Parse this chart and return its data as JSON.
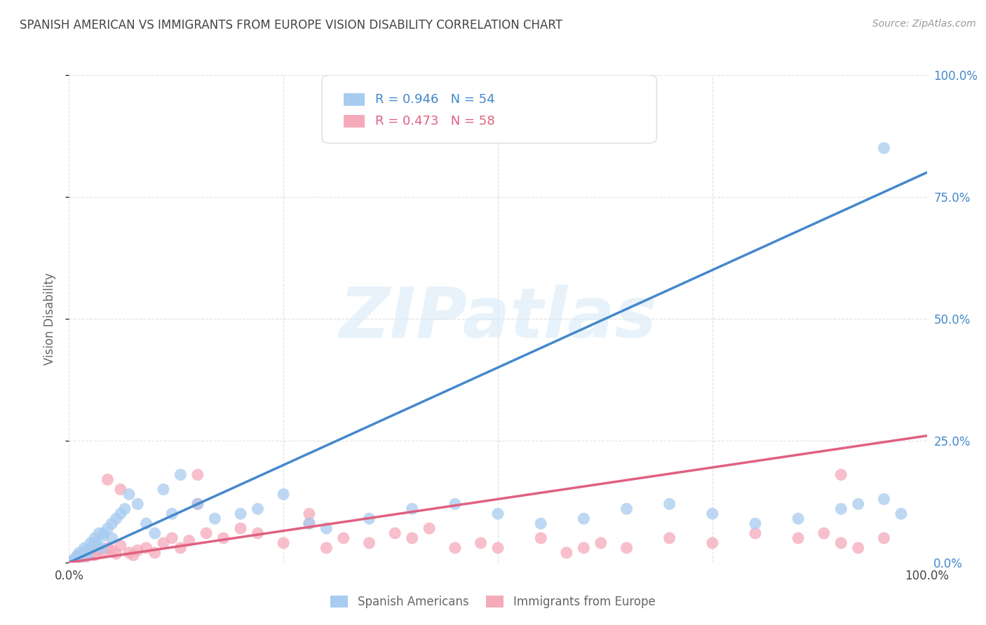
{
  "title": "SPANISH AMERICAN VS IMMIGRANTS FROM EUROPE VISION DISABILITY CORRELATION CHART",
  "source": "Source: ZipAtlas.com",
  "ylabel": "Vision Disability",
  "xlim": [
    0,
    100
  ],
  "ylim": [
    0,
    100
  ],
  "xticks": [
    0,
    25,
    50,
    75,
    100
  ],
  "yticks": [
    0,
    25,
    50,
    75,
    100
  ],
  "xtick_labels_bottom": [
    "0.0%",
    "",
    "",
    "",
    "100.0%"
  ],
  "ytick_labels_right": [
    "0.0%",
    "25.0%",
    "50.0%",
    "75.0%",
    "100.0%"
  ],
  "blue_R": 0.946,
  "blue_N": 54,
  "pink_R": 0.473,
  "pink_N": 58,
  "blue_scatter_color": "#A8CCF0",
  "pink_scatter_color": "#F5AABA",
  "blue_line_color": "#4488CC",
  "pink_line_color": "#E06080",
  "legend_label_blue": "Spanish Americans",
  "legend_label_pink": "Immigrants from Europe",
  "blue_scatter_x": [
    0.3,
    0.5,
    0.8,
    1.0,
    1.2,
    1.5,
    1.8,
    2.0,
    2.2,
    2.5,
    2.8,
    3.0,
    3.2,
    3.5,
    3.8,
    4.0,
    4.5,
    5.0,
    5.5,
    6.0,
    6.5,
    7.0,
    8.0,
    9.0,
    10.0,
    11.0,
    12.0,
    13.0,
    15.0,
    17.0,
    20.0,
    22.0,
    25.0,
    28.0,
    30.0,
    35.0,
    40.0,
    45.0,
    50.0,
    55.0,
    60.0,
    65.0,
    70.0,
    75.0,
    80.0,
    85.0,
    90.0,
    92.0,
    95.0,
    97.0,
    3.0,
    4.0,
    5.0,
    95.0
  ],
  "blue_scatter_y": [
    0.2,
    0.5,
    1.0,
    1.5,
    2.0,
    1.2,
    3.0,
    2.5,
    1.8,
    4.0,
    3.5,
    5.0,
    4.0,
    6.0,
    3.0,
    5.5,
    7.0,
    8.0,
    9.0,
    10.0,
    11.0,
    14.0,
    12.0,
    8.0,
    6.0,
    15.0,
    10.0,
    18.0,
    12.0,
    9.0,
    10.0,
    11.0,
    14.0,
    8.0,
    7.0,
    9.0,
    11.0,
    12.0,
    10.0,
    8.0,
    9.0,
    11.0,
    12.0,
    10.0,
    8.0,
    9.0,
    11.0,
    12.0,
    13.0,
    10.0,
    4.0,
    6.0,
    5.0,
    85.0
  ],
  "pink_scatter_x": [
    0.2,
    0.5,
    0.8,
    1.0,
    1.5,
    2.0,
    2.5,
    3.0,
    3.5,
    4.0,
    4.5,
    5.0,
    5.5,
    6.0,
    7.0,
    7.5,
    8.0,
    9.0,
    10.0,
    11.0,
    12.0,
    13.0,
    14.0,
    15.0,
    16.0,
    18.0,
    20.0,
    22.0,
    25.0,
    28.0,
    30.0,
    32.0,
    35.0,
    38.0,
    40.0,
    42.0,
    45.0,
    48.0,
    50.0,
    55.0,
    58.0,
    60.0,
    62.0,
    65.0,
    70.0,
    75.0,
    80.0,
    85.0,
    88.0,
    90.0,
    92.0,
    95.0,
    3.0,
    4.5,
    6.0,
    15.0,
    28.0,
    90.0
  ],
  "pink_scatter_y": [
    0.2,
    0.5,
    0.8,
    1.0,
    1.5,
    1.2,
    2.0,
    1.5,
    2.5,
    2.0,
    3.0,
    2.5,
    1.8,
    3.5,
    2.0,
    1.5,
    2.5,
    3.0,
    2.0,
    4.0,
    5.0,
    3.0,
    4.5,
    12.0,
    6.0,
    5.0,
    7.0,
    6.0,
    4.0,
    8.0,
    3.0,
    5.0,
    4.0,
    6.0,
    5.0,
    7.0,
    3.0,
    4.0,
    3.0,
    5.0,
    2.0,
    3.0,
    4.0,
    3.0,
    5.0,
    4.0,
    6.0,
    5.0,
    6.0,
    4.0,
    3.0,
    5.0,
    3.0,
    17.0,
    15.0,
    18.0,
    10.0,
    18.0
  ],
  "blue_line_x": [
    0,
    100
  ],
  "blue_line_y": [
    0,
    80
  ],
  "pink_line_x": [
    0,
    100
  ],
  "pink_line_y": [
    0,
    26
  ],
  "background_color": "#FFFFFF",
  "grid_color": "#CCCCCC",
  "title_color": "#444444",
  "axis_label_color": "#666666",
  "right_tick_color": "#4488CC",
  "watermark_color": "#D8EAF8",
  "watermark_alpha": 0.6
}
